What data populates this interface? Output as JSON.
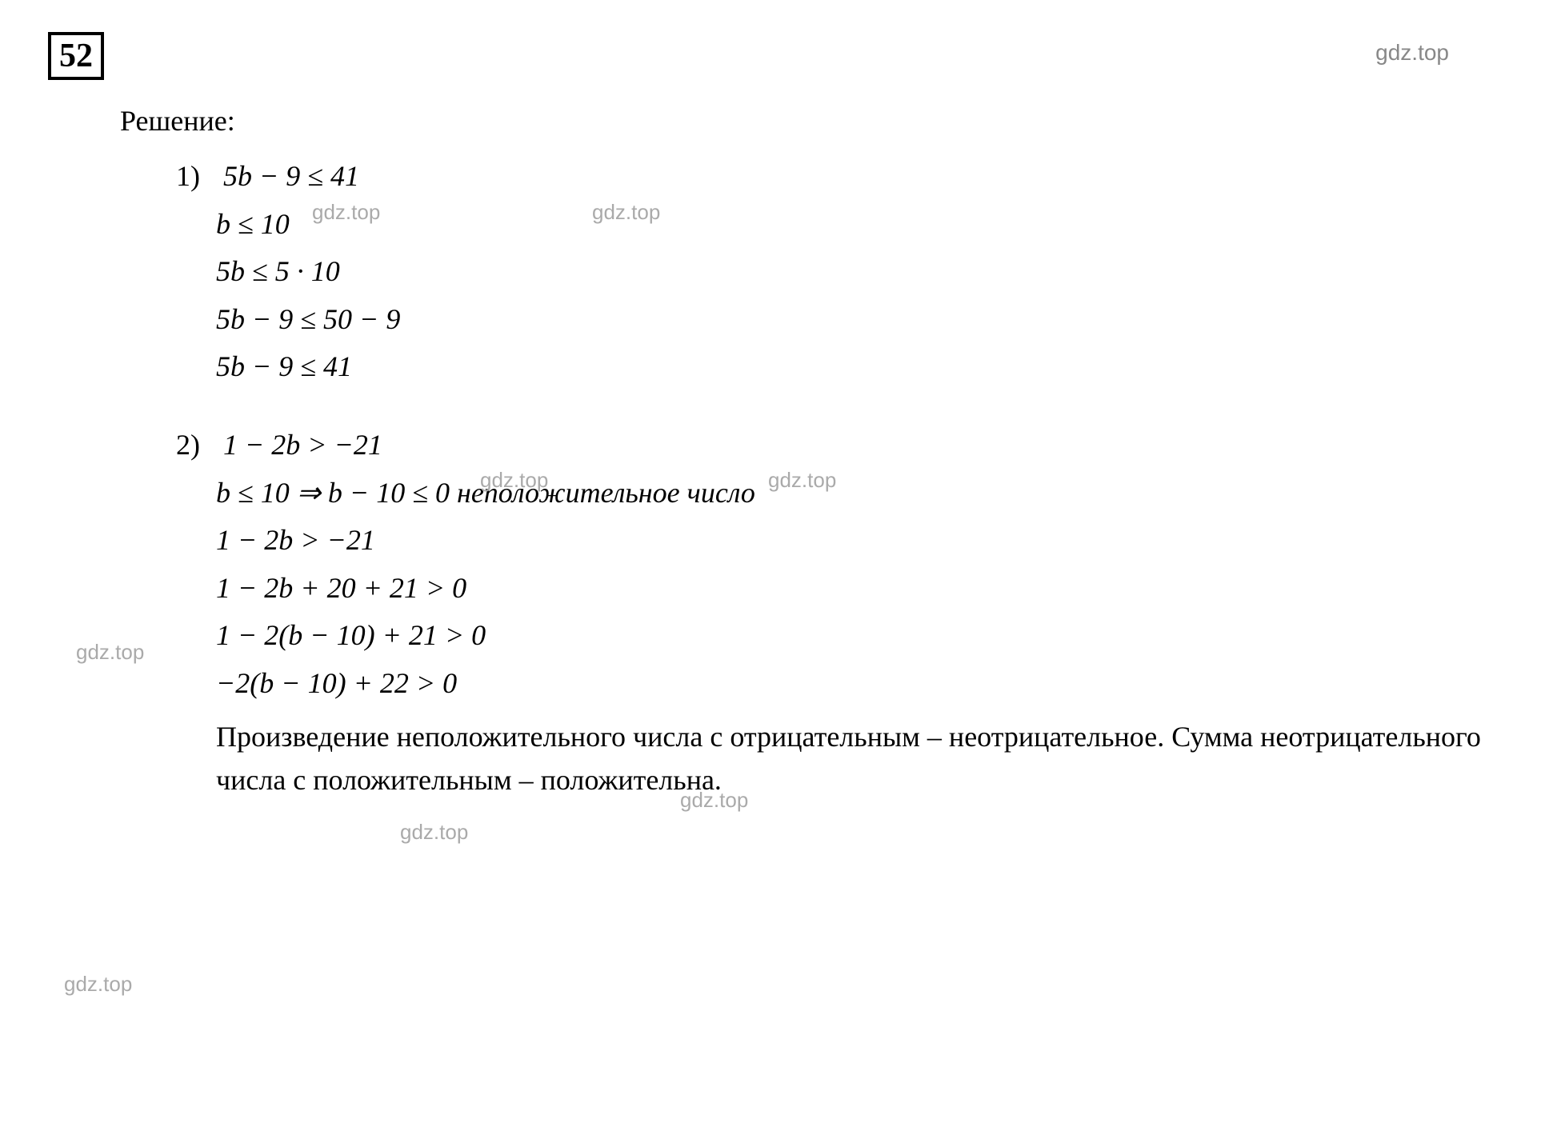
{
  "problem_number": "52",
  "watermark_text": "gdz.top",
  "solution_label": "Решение:",
  "part1": {
    "number": "1)",
    "line1": "5b − 9 ≤ 41",
    "line2": "b ≤ 10",
    "line3": "5b ≤ 5 · 10",
    "line4": "5b − 9 ≤ 50 − 9",
    "line5": "5b − 9 ≤ 41"
  },
  "part2": {
    "number": "2)",
    "line1": "1 − 2b > −21",
    "line2": "b ≤ 10 ⇒ b − 10 ≤ 0 неположительное число",
    "line3": "1 − 2b > −21",
    "line4": "1 − 2b + 20 + 21 > 0",
    "line5": "1 − 2(b − 10) + 21 > 0",
    "line6": "−2(b − 10) + 22 > 0",
    "conclusion": "Произведение неположительного числа с отрицательным – неотрицательное. Сумма неотрицательного числа с положительным – положительна."
  },
  "colors": {
    "background": "#ffffff",
    "text": "#000000",
    "watermark": "#aaaaaa",
    "watermark_dark": "#888888"
  },
  "fonts": {
    "main_family": "Times New Roman",
    "watermark_family": "Arial",
    "problem_number_size": 42,
    "body_size": 36,
    "watermark_size": 26
  }
}
